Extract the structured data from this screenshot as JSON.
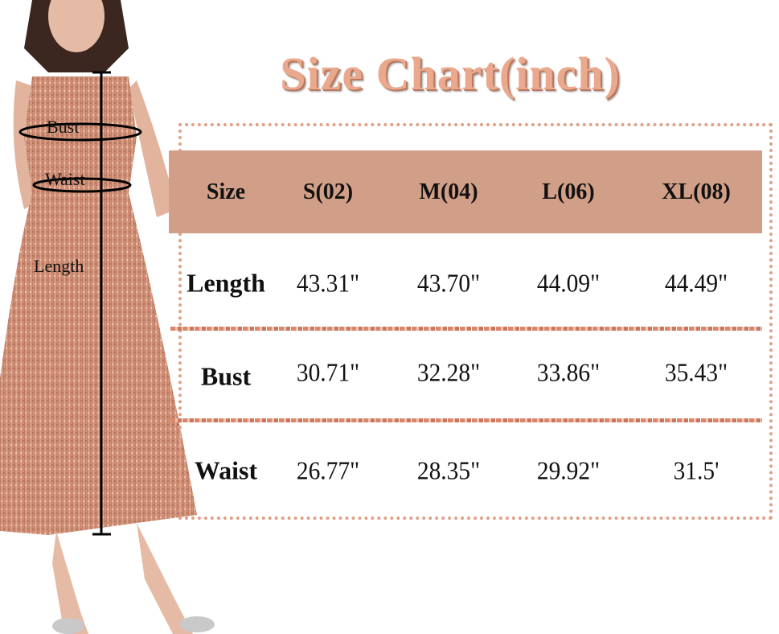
{
  "title": "Size Chart(inch)",
  "colors": {
    "header": "#d19f87",
    "title": "#eaa98c",
    "dress": "#c9876c"
  },
  "figure_labels": {
    "bust": "Bust",
    "waist": "Waist",
    "length": "Length"
  },
  "table": {
    "columns": [
      "Size",
      "S(02)",
      "M(04)",
      "L(06)",
      "XL(08)"
    ],
    "rows": [
      {
        "label": "Length",
        "values": [
          "43.31\"",
          "43.70\"",
          "44.09\"",
          "44.49\""
        ]
      },
      {
        "label": "Bust",
        "values": [
          "30.71\"",
          "32.28\"",
          "33.86\"",
          "35.43\""
        ]
      },
      {
        "label": "Waist",
        "values": [
          "26.77\"",
          "28.35\"",
          "29.92\"",
          "31.5'"
        ]
      }
    ]
  }
}
